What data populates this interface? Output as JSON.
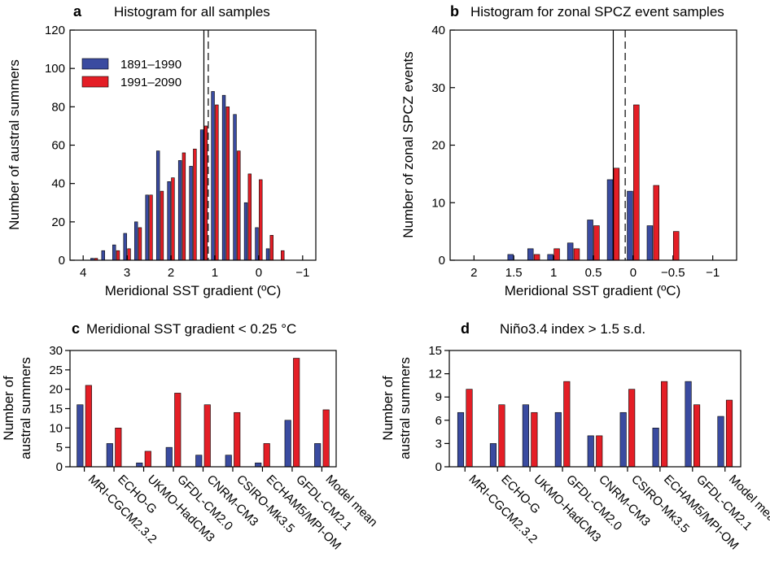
{
  "colors": {
    "early": "#3a4ba0",
    "late": "#e41e26"
  },
  "chart_data": [
    {
      "id": "a",
      "type": "bar",
      "letter": "a",
      "title": "Histogram for all samples",
      "xlabel": "Meridional SST gradient (ºC)",
      "ylabel": "Number of austral summers",
      "xlim": [
        4.3,
        -1.3
      ],
      "ylim": [
        0,
        120
      ],
      "yticks": [
        0,
        20,
        40,
        60,
        80,
        100,
        120
      ],
      "xticks": [
        4,
        3,
        2,
        1,
        0,
        -1
      ],
      "xtick_labels": [
        "4",
        "3",
        "2",
        "1",
        "0",
        "−1"
      ],
      "legend": {
        "position": "top-left",
        "entries": [
          "1891–1990",
          "1991–2090"
        ]
      },
      "vlines": [
        {
          "x": 1.25,
          "style": "solid"
        },
        {
          "x": 1.15,
          "style": "dashed"
        }
      ],
      "series": [
        {
          "name": "1891–1990",
          "x": [
            3.75,
            3.5,
            3.25,
            3.0,
            2.75,
            2.5,
            2.25,
            2.0,
            1.75,
            1.5,
            1.25,
            1.0,
            0.75,
            0.5,
            0.25,
            0.0,
            -0.25
          ],
          "values": [
            1,
            5,
            8,
            14,
            20,
            34,
            57,
            41,
            52,
            49,
            68,
            88,
            86,
            76,
            30,
            17,
            6
          ]
        },
        {
          "name": "1991–2090",
          "x": [
            3.75,
            3.5,
            3.25,
            3.0,
            2.75,
            2.5,
            2.25,
            2.0,
            1.75,
            1.5,
            1.25,
            1.0,
            0.75,
            0.5,
            0.25,
            0.0,
            -0.25,
            -0.5
          ],
          "values": [
            1,
            0,
            5,
            6,
            17,
            34,
            36,
            43,
            56,
            58,
            70,
            81,
            80,
            57,
            45,
            42,
            13,
            5
          ]
        }
      ]
    },
    {
      "id": "b",
      "type": "bar",
      "letter": "b",
      "title": "Histogram for zonal SPCZ event samples",
      "xlabel": "Meridional SST gradient (ºC)",
      "ylabel": "Number of zonal SPCZ events",
      "xlim": [
        2.3,
        -1.3
      ],
      "ylim": [
        0,
        40
      ],
      "yticks": [
        0,
        10,
        20,
        30,
        40
      ],
      "xticks": [
        2,
        1.5,
        1,
        0.5,
        0,
        -0.5,
        -1
      ],
      "xtick_labels": [
        "2",
        "1.5",
        "1",
        "0.5",
        "0",
        "−0.5",
        "−1"
      ],
      "vlines": [
        {
          "x": 0.25,
          "style": "solid"
        },
        {
          "x": 0.1,
          "style": "dashed"
        }
      ],
      "series": [
        {
          "name": "1891–1990",
          "x": [
            1.5,
            1.25,
            1.0,
            0.75,
            0.5,
            0.25,
            0.0,
            -0.25
          ],
          "values": [
            1,
            2,
            1,
            3,
            7,
            14,
            12,
            6
          ]
        },
        {
          "name": "1991–2090",
          "x": [
            1.5,
            1.25,
            1.0,
            0.75,
            0.5,
            0.25,
            0.0,
            -0.25,
            -0.5
          ],
          "values": [
            0,
            1,
            2,
            2,
            6,
            16,
            27,
            13,
            5
          ]
        }
      ]
    },
    {
      "id": "c",
      "type": "bar",
      "letter": "c",
      "title": "Meridional SST gradient < 0.25 °C",
      "ylabel_lines": [
        "Number of",
        "austral summers"
      ],
      "ylim": [
        0,
        30
      ],
      "yticks": [
        0,
        5,
        10,
        15,
        20,
        25,
        30
      ],
      "categories": [
        "MRI-CGCM2.3.2",
        "ECHO-G",
        "UKMO-HadCM3",
        "GFDL-CM2.0",
        "CNRM-CM3",
        "CSIRO-Mk3.5",
        "ECHAM5/MPI-OM",
        "GFDL-CM2.1",
        "Model mean"
      ],
      "series": [
        {
          "name": "1891–1990",
          "values": [
            16,
            6,
            1,
            5,
            3,
            3,
            1,
            12,
            6
          ]
        },
        {
          "name": "1991–2090",
          "values": [
            21,
            10,
            4,
            19,
            16,
            14,
            6,
            28,
            14.7
          ]
        }
      ]
    },
    {
      "id": "d",
      "type": "bar",
      "letter": "d",
      "title": "Niño3.4 index > 1.5 s.d.",
      "ylabel_lines": [
        "Number of",
        "austral summers"
      ],
      "ylim": [
        0,
        15
      ],
      "yticks": [
        0,
        3,
        6,
        9,
        12,
        15
      ],
      "categories": [
        "MRI-CGCM2.3.2",
        "ECHO-G",
        "UKMO-HadCM3",
        "GFDL-CM2.0",
        "CNRM-CM3",
        "CSIRO-Mk3.5",
        "ECHAM5/MPI-OM",
        "GFDL-CM2.1",
        "Model mean"
      ],
      "series": [
        {
          "name": "1891–1990",
          "values": [
            7,
            3,
            8,
            7,
            4,
            7,
            5,
            11,
            6.5
          ]
        },
        {
          "name": "1991–2090",
          "values": [
            10,
            8,
            7,
            11,
            4,
            10,
            11,
            8,
            8.6
          ]
        }
      ]
    }
  ]
}
